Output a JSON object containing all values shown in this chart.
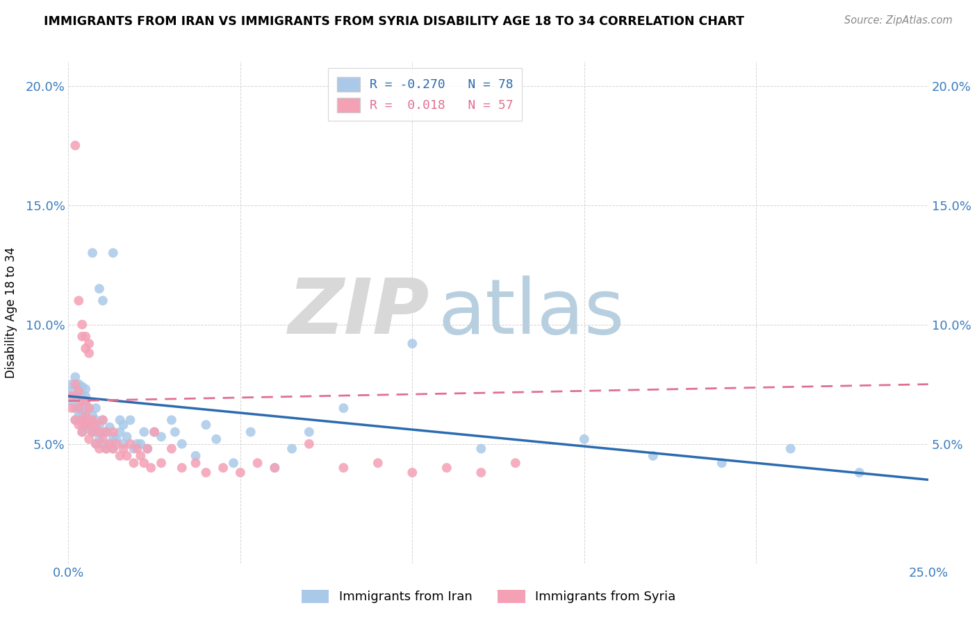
{
  "title": "IMMIGRANTS FROM IRAN VS IMMIGRANTS FROM SYRIA DISABILITY AGE 18 TO 34 CORRELATION CHART",
  "source": "Source: ZipAtlas.com",
  "ylabel": "Disability Age 18 to 34",
  "xlim": [
    0.0,
    0.25
  ],
  "ylim": [
    0.0,
    0.21
  ],
  "iran_color": "#aac9e8",
  "syria_color": "#f4a0b5",
  "iran_line_color": "#2b6bb0",
  "syria_line_color": "#e07090",
  "iran_R": -0.27,
  "iran_N": 78,
  "syria_R": 0.018,
  "syria_N": 57,
  "iran_x": [
    0.001,
    0.001,
    0.001,
    0.002,
    0.002,
    0.002,
    0.002,
    0.003,
    0.003,
    0.003,
    0.003,
    0.003,
    0.004,
    0.004,
    0.004,
    0.004,
    0.004,
    0.004,
    0.005,
    0.005,
    0.005,
    0.005,
    0.005,
    0.005,
    0.006,
    0.006,
    0.006,
    0.007,
    0.007,
    0.007,
    0.008,
    0.008,
    0.008,
    0.008,
    0.009,
    0.009,
    0.01,
    0.01,
    0.01,
    0.011,
    0.011,
    0.012,
    0.012,
    0.013,
    0.013,
    0.014,
    0.015,
    0.015,
    0.016,
    0.016,
    0.017,
    0.018,
    0.019,
    0.02,
    0.021,
    0.022,
    0.023,
    0.025,
    0.027,
    0.03,
    0.031,
    0.033,
    0.037,
    0.04,
    0.043,
    0.048,
    0.053,
    0.06,
    0.065,
    0.07,
    0.08,
    0.1,
    0.12,
    0.15,
    0.17,
    0.19,
    0.21,
    0.23
  ],
  "iran_y": [
    0.068,
    0.072,
    0.075,
    0.06,
    0.065,
    0.07,
    0.078,
    0.062,
    0.065,
    0.068,
    0.072,
    0.075,
    0.055,
    0.058,
    0.062,
    0.065,
    0.07,
    0.074,
    0.057,
    0.06,
    0.063,
    0.067,
    0.07,
    0.073,
    0.056,
    0.06,
    0.065,
    0.055,
    0.058,
    0.062,
    0.05,
    0.055,
    0.06,
    0.065,
    0.052,
    0.058,
    0.05,
    0.055,
    0.06,
    0.048,
    0.055,
    0.05,
    0.057,
    0.048,
    0.053,
    0.052,
    0.055,
    0.06,
    0.05,
    0.058,
    0.053,
    0.06,
    0.048,
    0.05,
    0.05,
    0.055,
    0.048,
    0.055,
    0.053,
    0.06,
    0.055,
    0.05,
    0.045,
    0.058,
    0.052,
    0.042,
    0.055,
    0.04,
    0.048,
    0.055,
    0.065,
    0.092,
    0.048,
    0.052,
    0.045,
    0.042,
    0.048,
    0.038
  ],
  "iran_y_outliers": [
    [
      0.007,
      0.13
    ],
    [
      0.009,
      0.115
    ],
    [
      0.01,
      0.11
    ],
    [
      0.013,
      0.13
    ]
  ],
  "syria_x": [
    0.001,
    0.001,
    0.002,
    0.002,
    0.003,
    0.003,
    0.003,
    0.004,
    0.004,
    0.004,
    0.005,
    0.005,
    0.005,
    0.006,
    0.006,
    0.006,
    0.007,
    0.007,
    0.008,
    0.008,
    0.009,
    0.009,
    0.01,
    0.01,
    0.011,
    0.011,
    0.012,
    0.013,
    0.013,
    0.014,
    0.015,
    0.016,
    0.017,
    0.018,
    0.019,
    0.02,
    0.021,
    0.022,
    0.023,
    0.024,
    0.025,
    0.027,
    0.03,
    0.033,
    0.037,
    0.04,
    0.045,
    0.05,
    0.055,
    0.06,
    0.07,
    0.08,
    0.09,
    0.1,
    0.11,
    0.12,
    0.13
  ],
  "syria_y": [
    0.065,
    0.07,
    0.06,
    0.075,
    0.058,
    0.065,
    0.072,
    0.055,
    0.06,
    0.068,
    0.058,
    0.062,
    0.068,
    0.052,
    0.058,
    0.065,
    0.055,
    0.06,
    0.05,
    0.058,
    0.048,
    0.055,
    0.052,
    0.06,
    0.048,
    0.055,
    0.05,
    0.048,
    0.055,
    0.05,
    0.045,
    0.048,
    0.045,
    0.05,
    0.042,
    0.048,
    0.045,
    0.042,
    0.048,
    0.04,
    0.055,
    0.042,
    0.048,
    0.04,
    0.042,
    0.038,
    0.04,
    0.038,
    0.042,
    0.04,
    0.05,
    0.04,
    0.042,
    0.038,
    0.04,
    0.038,
    0.042
  ],
  "syria_y_outliers": [
    [
      0.002,
      0.175
    ],
    [
      0.003,
      0.11
    ],
    [
      0.004,
      0.095
    ],
    [
      0.004,
      0.1
    ],
    [
      0.005,
      0.09
    ],
    [
      0.005,
      0.095
    ],
    [
      0.006,
      0.088
    ],
    [
      0.006,
      0.092
    ]
  ],
  "iran_trend_x": [
    0.0,
    0.25
  ],
  "iran_trend_y": [
    0.07,
    0.035
  ],
  "syria_trend_x": [
    0.0,
    0.25
  ],
  "syria_trend_y": [
    0.068,
    0.075
  ]
}
